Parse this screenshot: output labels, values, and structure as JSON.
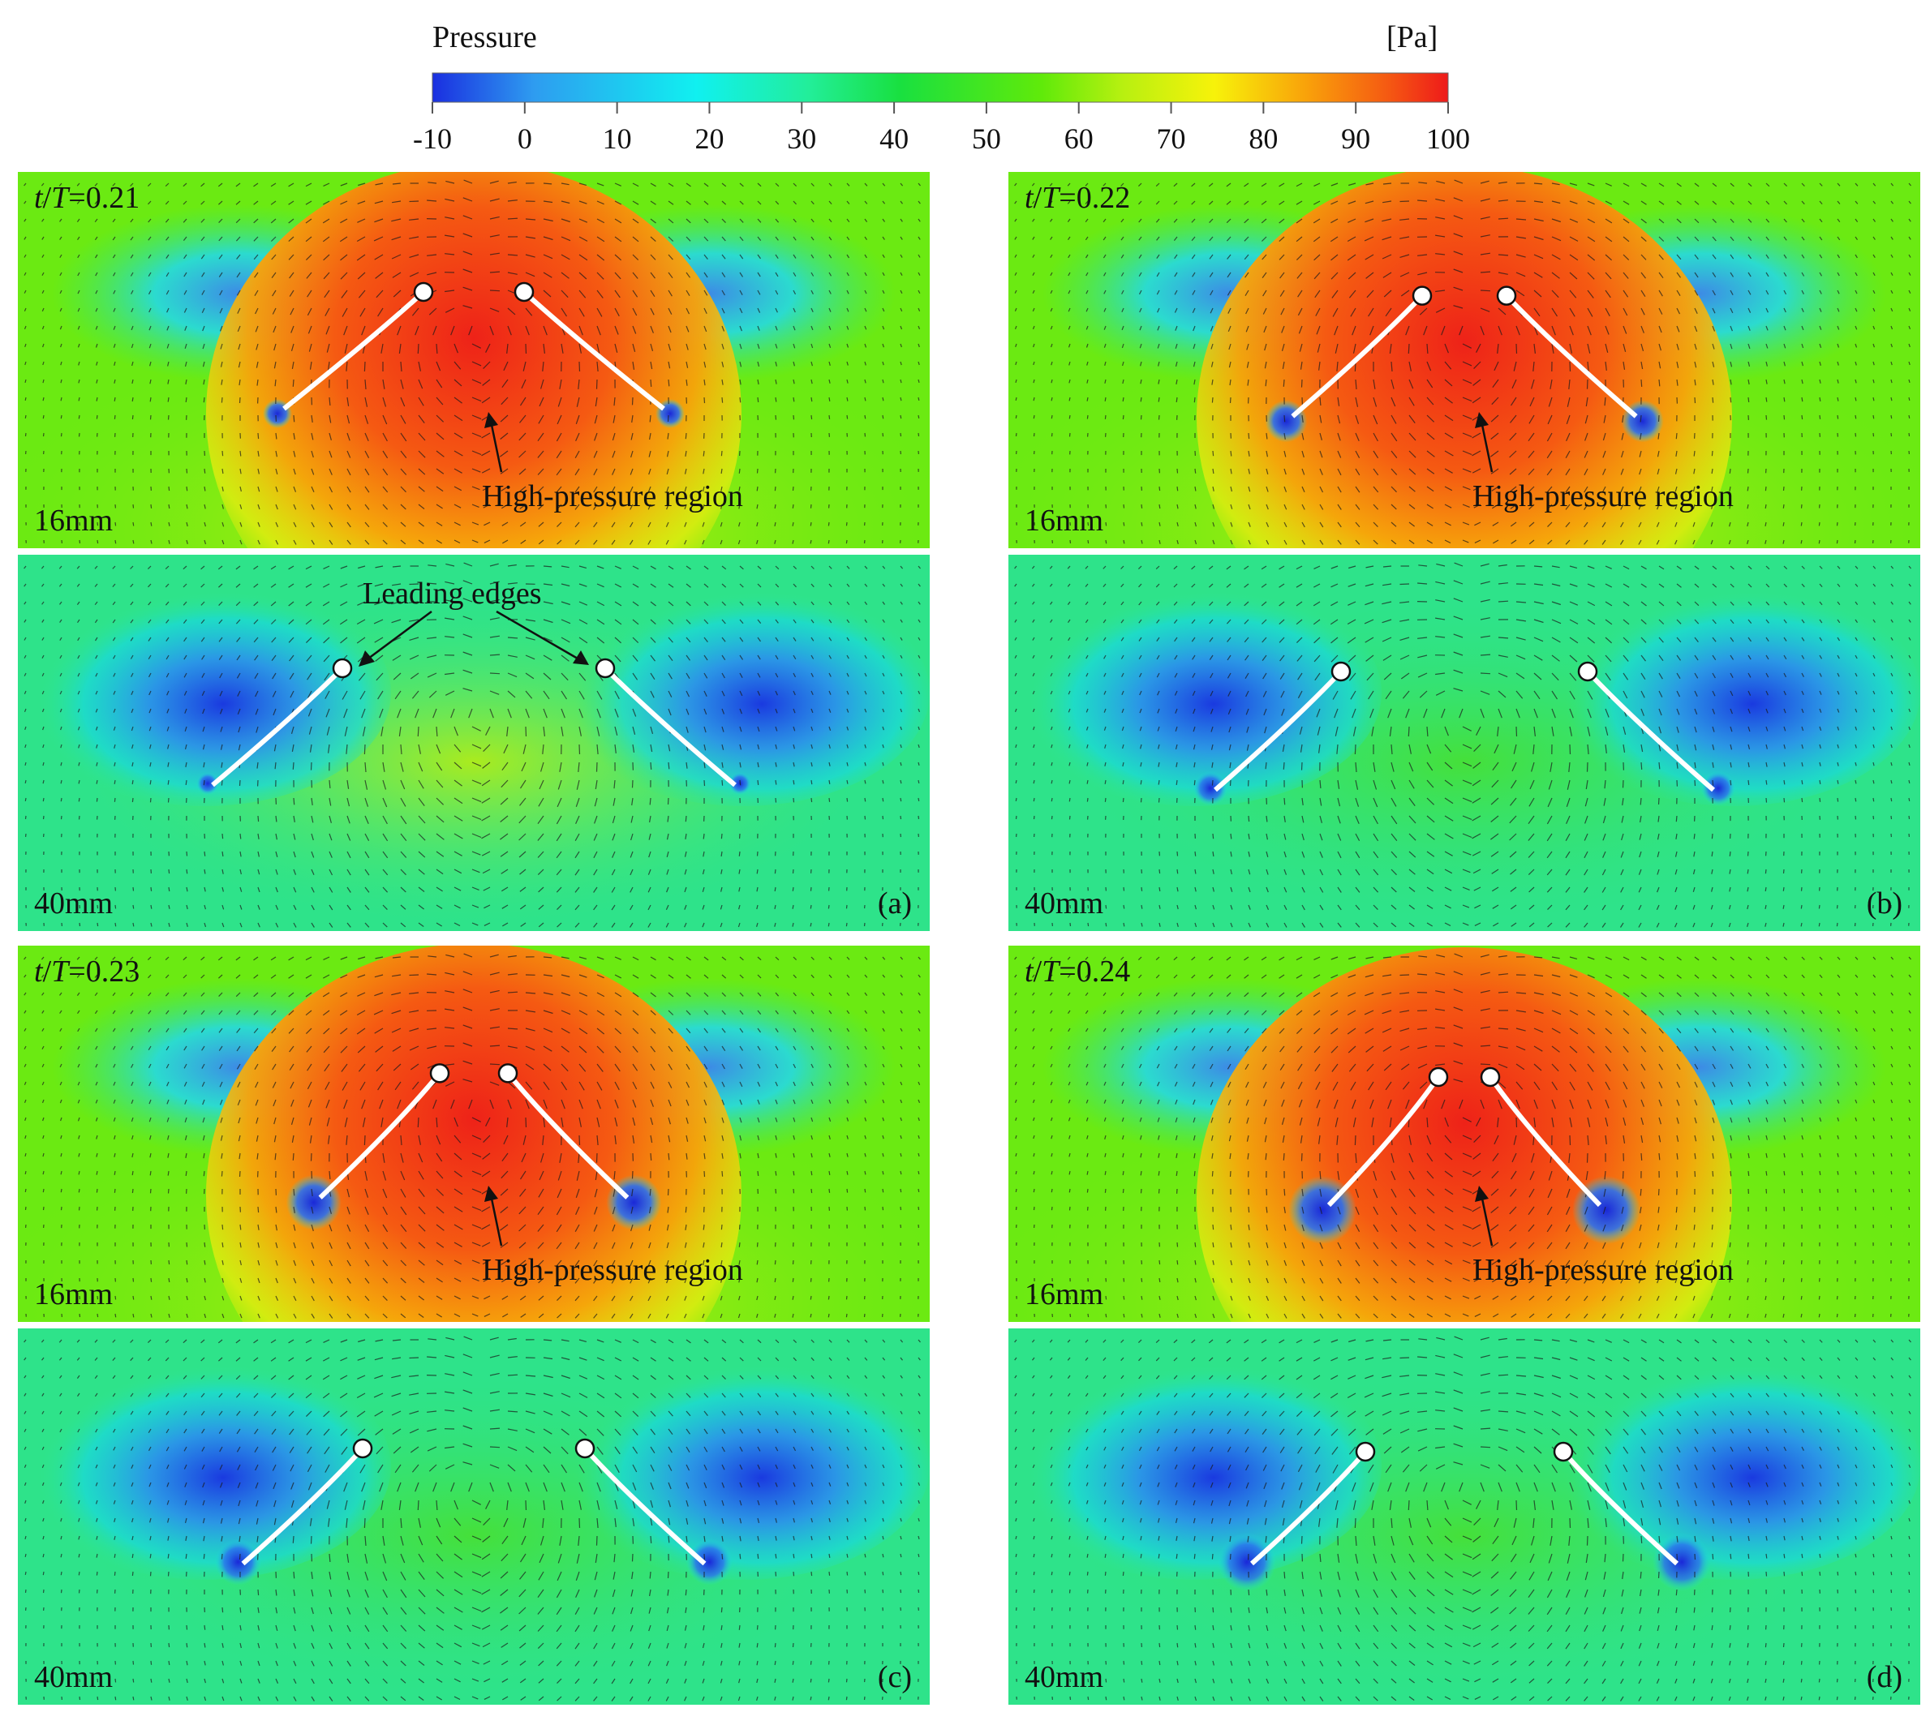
{
  "colorbar": {
    "title": "Pressure",
    "unit": "[Pa]",
    "ticks": [
      "-10",
      "0",
      "10",
      "20",
      "30",
      "40",
      "50",
      "60",
      "70",
      "80",
      "90",
      "100"
    ],
    "range": [
      -10,
      100
    ],
    "colors": [
      "#1a2fe0",
      "#2e9cf0",
      "#10f0f0",
      "#22ee9a",
      "#19e040",
      "#60ea0a",
      "#b8f010",
      "#f7f20a",
      "#f9a20a",
      "#f55a12",
      "#ee1a1a"
    ]
  },
  "panels": [
    {
      "id": "a",
      "letter": "(a)",
      "time_prefix": "t",
      "time_sep": "/",
      "time_T": "T",
      "time_value": "=0.21",
      "top": {
        "distance": "16mm",
        "annotation": "High-pressure region"
      },
      "bottom": {
        "distance": "40mm",
        "annotation": "Leading edges"
      }
    },
    {
      "id": "b",
      "letter": "(b)",
      "time_prefix": "t",
      "time_sep": "/",
      "time_T": "T",
      "time_value": "=0.22",
      "top": {
        "distance": "16mm",
        "annotation": "High-pressure region"
      },
      "bottom": {
        "distance": "40mm"
      }
    },
    {
      "id": "c",
      "letter": "(c)",
      "time_prefix": "t",
      "time_sep": "/",
      "time_T": "T",
      "time_value": "=0.23",
      "top": {
        "distance": "16mm",
        "annotation": "High-pressure region"
      },
      "bottom": {
        "distance": "40mm"
      }
    },
    {
      "id": "d",
      "letter": "(d)",
      "time_prefix": "t",
      "time_sep": "/",
      "time_T": "T",
      "time_value": "=0.24",
      "top": {
        "distance": "16mm",
        "annotation": "High-pressure region"
      },
      "bottom": {
        "distance": "40mm"
      }
    }
  ]
}
